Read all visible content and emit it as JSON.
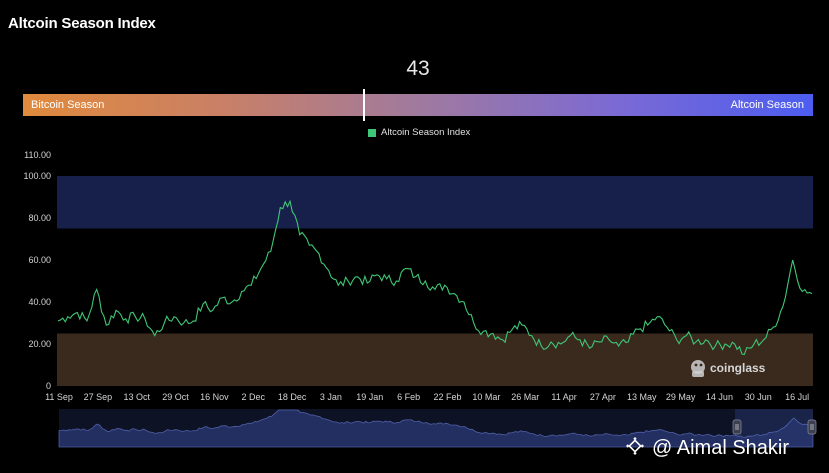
{
  "header": {
    "title": "Altcoin Season Index"
  },
  "gauge": {
    "value": "43",
    "left_label": "Bitcoin Season",
    "right_label": "Altcoin Season",
    "marker_fraction": 0.43
  },
  "brand": {
    "logo_text": "coinglass"
  },
  "overlay": {
    "credit_text": "@ Aimal Shakir"
  },
  "colors": {
    "line": "#3ec776",
    "altcoin_zone": "#16204a",
    "bitcoin_zone": "#3a2a1e",
    "bitcoin_season": "#e08a3c",
    "altcoin_season": "#4c5df0"
  },
  "chart_data": {
    "type": "line",
    "title": "",
    "legend": [
      "Altcoin Season Index"
    ],
    "legend_position": "top-center",
    "ylim": [
      0,
      110
    ],
    "y_ticks": [
      "0",
      "20.00",
      "40.00",
      "60.00",
      "80.00",
      "100.00",
      "110.00"
    ],
    "x_ticks": [
      "11 Sep",
      "27 Sep",
      "13 Oct",
      "29 Oct",
      "16 Nov",
      "2 Dec",
      "18 Dec",
      "3 Jan",
      "19 Jan",
      "6 Feb",
      "22 Feb",
      "10 Mar",
      "26 Mar",
      "11 Apr",
      "27 Apr",
      "13 May",
      "29 May",
      "14 Jun",
      "30 Jun",
      "16 Jul"
    ],
    "bands": [
      {
        "name": "Altcoin Season zone",
        "from": 75,
        "to": 100
      },
      {
        "name": "Bitcoin Season zone",
        "from": 0,
        "to": 25
      }
    ],
    "series": [
      {
        "name": "Altcoin Season Index",
        "x_start": "11 Sep",
        "x_end": "24 Jul",
        "values": [
          31,
          33,
          35,
          31,
          46,
          29,
          36,
          32,
          33,
          32,
          24,
          30,
          33,
          30,
          31,
          39,
          36,
          42,
          40,
          45,
          48,
          56,
          64,
          85,
          88,
          72,
          67,
          63,
          55,
          48,
          50,
          52,
          49,
          53,
          51,
          50,
          56,
          52,
          50,
          46,
          48,
          44,
          40,
          30,
          26,
          25,
          22,
          27,
          29,
          24,
          19,
          21,
          20,
          24,
          22,
          18,
          21,
          22,
          19,
          21,
          27,
          29,
          33,
          28,
          22,
          24,
          21,
          22,
          19,
          20,
          20,
          15,
          20,
          22,
          28,
          38,
          60,
          45,
          44
        ]
      }
    ]
  }
}
